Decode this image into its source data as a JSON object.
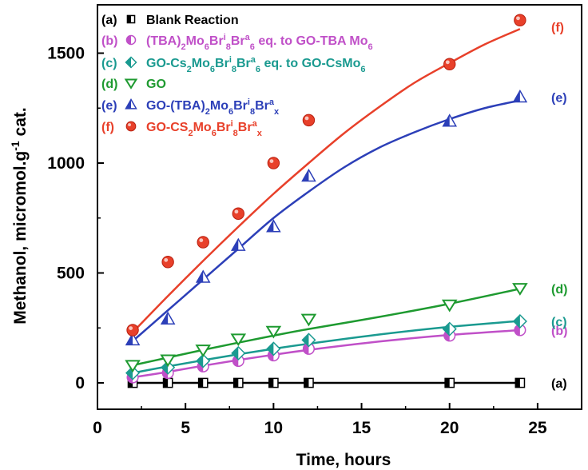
{
  "chart_data": {
    "type": "scatter",
    "xlabel": "Time, hours",
    "ylabel": "Methanol, micromol.g-1 cat.",
    "xlim": [
      0,
      27.5
    ],
    "ylim": [
      -120,
      1720
    ],
    "x_ticks": [
      0,
      5,
      10,
      15,
      20,
      25
    ],
    "y_ticks": [
      0,
      500,
      1000,
      1500
    ],
    "grid": false,
    "legend_position": "top-left",
    "series": [
      {
        "id": "a",
        "tag": "(a)",
        "name": "Blank Reaction",
        "end_label": "(a)",
        "color": "#000000",
        "marker": "square-half",
        "x": [
          2,
          4,
          6,
          8,
          10,
          12,
          20,
          24
        ],
        "y": [
          0,
          0,
          0,
          0,
          0,
          0,
          0,
          0
        ],
        "fit": [
          [
            2,
            0
          ],
          [
            24,
            0
          ]
        ]
      },
      {
        "id": "b",
        "tag": "(b)",
        "name": "(TBA)2Mo6Bri8Bra6 eq. to GO-TBA Mo6",
        "end_label": "(b)",
        "color": "#c050c8",
        "marker": "circle-half",
        "x": [
          2,
          4,
          6,
          8,
          10,
          12,
          20,
          24
        ],
        "y": [
          25,
          45,
          75,
          100,
          125,
          155,
          215,
          240
        ],
        "fit": [
          [
            2,
            25
          ],
          [
            4,
            50
          ],
          [
            6,
            78
          ],
          [
            8,
            104
          ],
          [
            10,
            128
          ],
          [
            12,
            150
          ],
          [
            16,
            188
          ],
          [
            20,
            218
          ],
          [
            24,
            240
          ]
        ]
      },
      {
        "id": "c",
        "tag": "(c)",
        "name": "GO-Cs2Mo6Bri8Bra6 eq. to GO-CsMo6",
        "end_label": "(c)",
        "color": "#1a9a90",
        "marker": "diamond-half",
        "x": [
          2,
          4,
          6,
          8,
          10,
          12,
          20,
          24
        ],
        "y": [
          45,
          70,
          100,
          135,
          155,
          195,
          245,
          280
        ],
        "fit": [
          [
            2,
            45
          ],
          [
            4,
            75
          ],
          [
            6,
            103
          ],
          [
            8,
            130
          ],
          [
            10,
            155
          ],
          [
            12,
            178
          ],
          [
            16,
            220
          ],
          [
            20,
            255
          ],
          [
            24,
            282
          ]
        ]
      },
      {
        "id": "d",
        "tag": "(d)",
        "name": "GO",
        "end_label": "(d)",
        "color": "#1e9a30",
        "marker": "triangle-down",
        "x": [
          2,
          4,
          6,
          8,
          10,
          12,
          20,
          24
        ],
        "y": [
          80,
          105,
          150,
          200,
          235,
          290,
          355,
          430
        ],
        "fit": [
          [
            2,
            80
          ],
          [
            4,
            115
          ],
          [
            6,
            150
          ],
          [
            8,
            183
          ],
          [
            10,
            215
          ],
          [
            12,
            245
          ],
          [
            16,
            300
          ],
          [
            20,
            360
          ],
          [
            24,
            428
          ]
        ]
      },
      {
        "id": "e",
        "tag": "(e)",
        "name": "GO-(TBA)2Mo6Bri8Brax",
        "end_label": "(e)",
        "color": "#2c3fb8",
        "marker": "triangle-up-half",
        "x": [
          2,
          4,
          6,
          8,
          10,
          12,
          20,
          24
        ],
        "y": [
          195,
          290,
          480,
          625,
          710,
          940,
          1190,
          1300
        ],
        "fit": [
          [
            2,
            190
          ],
          [
            4,
            330
          ],
          [
            6,
            470
          ],
          [
            8,
            610
          ],
          [
            10,
            750
          ],
          [
            12,
            870
          ],
          [
            14,
            980
          ],
          [
            16,
            1070
          ],
          [
            18,
            1140
          ],
          [
            20,
            1200
          ],
          [
            22,
            1250
          ],
          [
            24,
            1285
          ]
        ]
      },
      {
        "id": "f",
        "tag": "(f)",
        "name": "GO-CS2Mo6Bri8Brax",
        "end_label": "(f)",
        "color": "#e8402a",
        "marker": "circle",
        "x": [
          2,
          4,
          6,
          8,
          10,
          12,
          20,
          24
        ],
        "y": [
          240,
          550,
          640,
          770,
          1000,
          1195,
          1450,
          1650
        ],
        "fit": [
          [
            2,
            230
          ],
          [
            4,
            395
          ],
          [
            6,
            555
          ],
          [
            8,
            710
          ],
          [
            10,
            860
          ],
          [
            12,
            1000
          ],
          [
            14,
            1135
          ],
          [
            16,
            1255
          ],
          [
            18,
            1365
          ],
          [
            20,
            1455
          ],
          [
            22,
            1540
          ],
          [
            24,
            1610
          ]
        ]
      }
    ]
  }
}
